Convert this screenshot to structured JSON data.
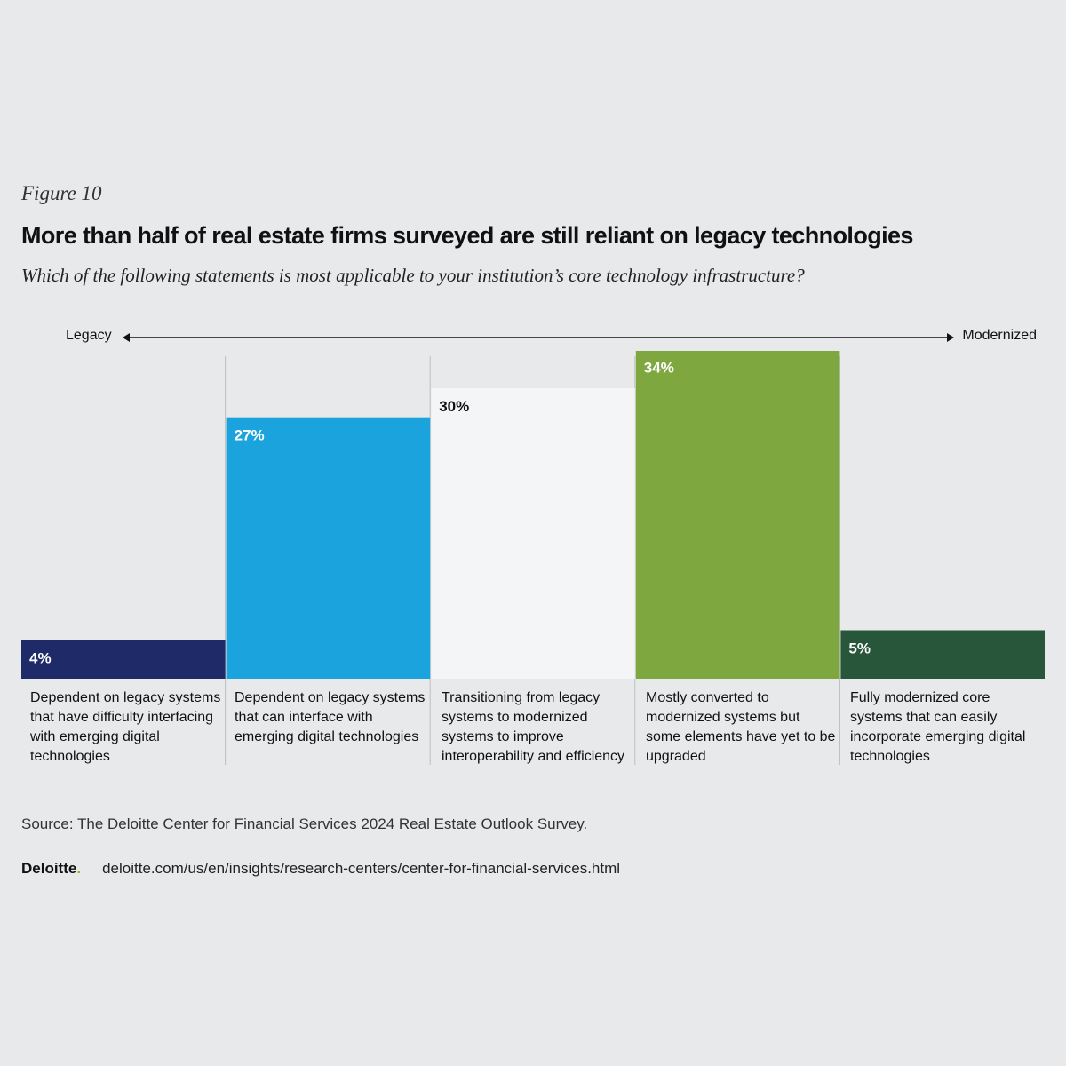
{
  "header": {
    "figure_label": "Figure 10",
    "title": "More than half of real estate firms surveyed are still reliant on legacy technologies",
    "subtitle": "Which of the following statements is most applicable to your institution’s core technology infrastructure?"
  },
  "axis": {
    "left_label": "Legacy",
    "right_label": "Modernized"
  },
  "chart_data": {
    "type": "bar",
    "ylim": [
      0,
      100
    ],
    "grid": false,
    "categories": [
      "Dependent on legacy systems that have difficulty interfacing with emerging digital technologies",
      "Dependent on legacy systems that can interface with emerging digital technologies",
      "Transitioning from legacy systems to modernized systems to improve interoperability and efficiency",
      "Mostly converted to modernized systems but some elements have yet to be upgraded",
      "Fully modernized core systems that can easily incorporate emerging digital technologies"
    ],
    "values": [
      4,
      27,
      30,
      34,
      5
    ],
    "value_labels": [
      "4%",
      "27%",
      "30%",
      "34%",
      "5%"
    ],
    "colors": [
      "#1f2a68",
      "#1aa3dd",
      "#f4f5f7",
      "#7ea83f",
      "#27563a"
    ],
    "label_colors": [
      "#ffffff",
      "#ffffff",
      "#111111",
      "#ffffff",
      "#ffffff"
    ],
    "track_color": "#dcdddf"
  },
  "footer": {
    "source": "Source: The Deloitte Center for Financial Services 2024 Real Estate Outlook Survey.",
    "brand": "Deloitte",
    "brand_dot": ".",
    "url": "deloitte.com/us/en/insights/research-centers/center-for-financial-services.html"
  }
}
